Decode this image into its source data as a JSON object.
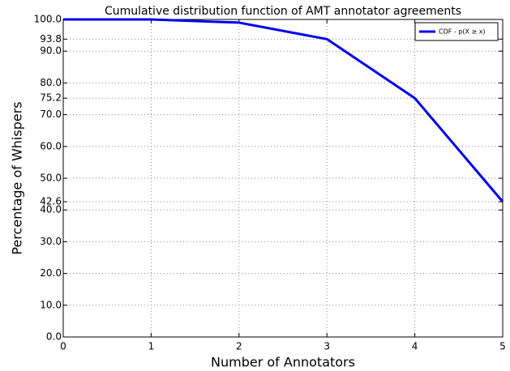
{
  "chart_data": {
    "type": "line",
    "title": "Cumulative distribution function of AMT annotator agreements",
    "x_label": "Number of Annotators",
    "y_label": "Percentage of Whispers",
    "x": [
      0,
      1,
      2,
      3,
      4,
      5
    ],
    "series": [
      {
        "name": "CDF - p(X ≥ x)",
        "color": "#0000ee",
        "values": [
          100,
          100,
          99,
          93.8,
          75.2,
          42.6
        ]
      }
    ],
    "xlim": [
      0,
      5
    ],
    "xticks": [
      0,
      1,
      2,
      3,
      4,
      5
    ],
    "ylim": [
      0,
      100
    ],
    "yticks": [
      {
        "value": 0,
        "label": "0.0"
      },
      {
        "value": 10,
        "label": "10.0"
      },
      {
        "value": 20,
        "label": "20.0"
      },
      {
        "value": 30,
        "label": "30.0"
      },
      {
        "value": 40,
        "label": "40.0"
      },
      42.6,
      {
        "value": 50,
        "label": "50.0"
      },
      {
        "value": 60,
        "label": "60.0"
      },
      {
        "value": 70,
        "label": "70.0"
      },
      75.2,
      {
        "value": 80,
        "label": "80.0"
      },
      {
        "value": 90,
        "label": "90.0"
      },
      93.8,
      {
        "value": 100,
        "label": "100.0"
      }
    ],
    "grid": true,
    "legend": "upper right"
  }
}
